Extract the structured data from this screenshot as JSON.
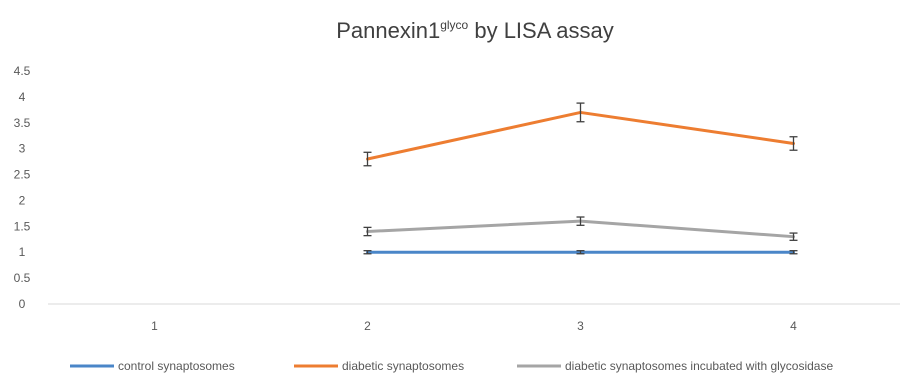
{
  "chart_data": {
    "type": "line",
    "title": "Pannexin1",
    "title_superscript": "glyco",
    "title_suffix": " by LISA assay",
    "x": [
      1,
      2,
      3,
      4
    ],
    "x_tick_labels": [
      "1",
      "2",
      "3",
      "4"
    ],
    "y_tick_labels": [
      "0",
      "0.5",
      "1",
      "1.5",
      "2",
      "2.5",
      "3",
      "3.5",
      "4",
      "4.5"
    ],
    "ylim": [
      0,
      4.5
    ],
    "grid": false,
    "legend_position": "bottom",
    "series": [
      {
        "name": "control synaptosomes",
        "color": "#4A86C8",
        "values": [
          null,
          1.0,
          1.0,
          1.0
        ],
        "error": [
          null,
          0.03,
          0.03,
          0.03
        ]
      },
      {
        "name": "diabetic synaptosomes",
        "color": "#ED7D31",
        "values": [
          null,
          2.8,
          3.7,
          3.1
        ],
        "error": [
          null,
          0.13,
          0.18,
          0.13
        ]
      },
      {
        "name": "diabetic synaptosomes incubated with glycosidase",
        "color": "#A5A5A5",
        "values": [
          null,
          1.4,
          1.6,
          1.3
        ],
        "error": [
          null,
          0.08,
          0.08,
          0.07
        ]
      }
    ]
  }
}
